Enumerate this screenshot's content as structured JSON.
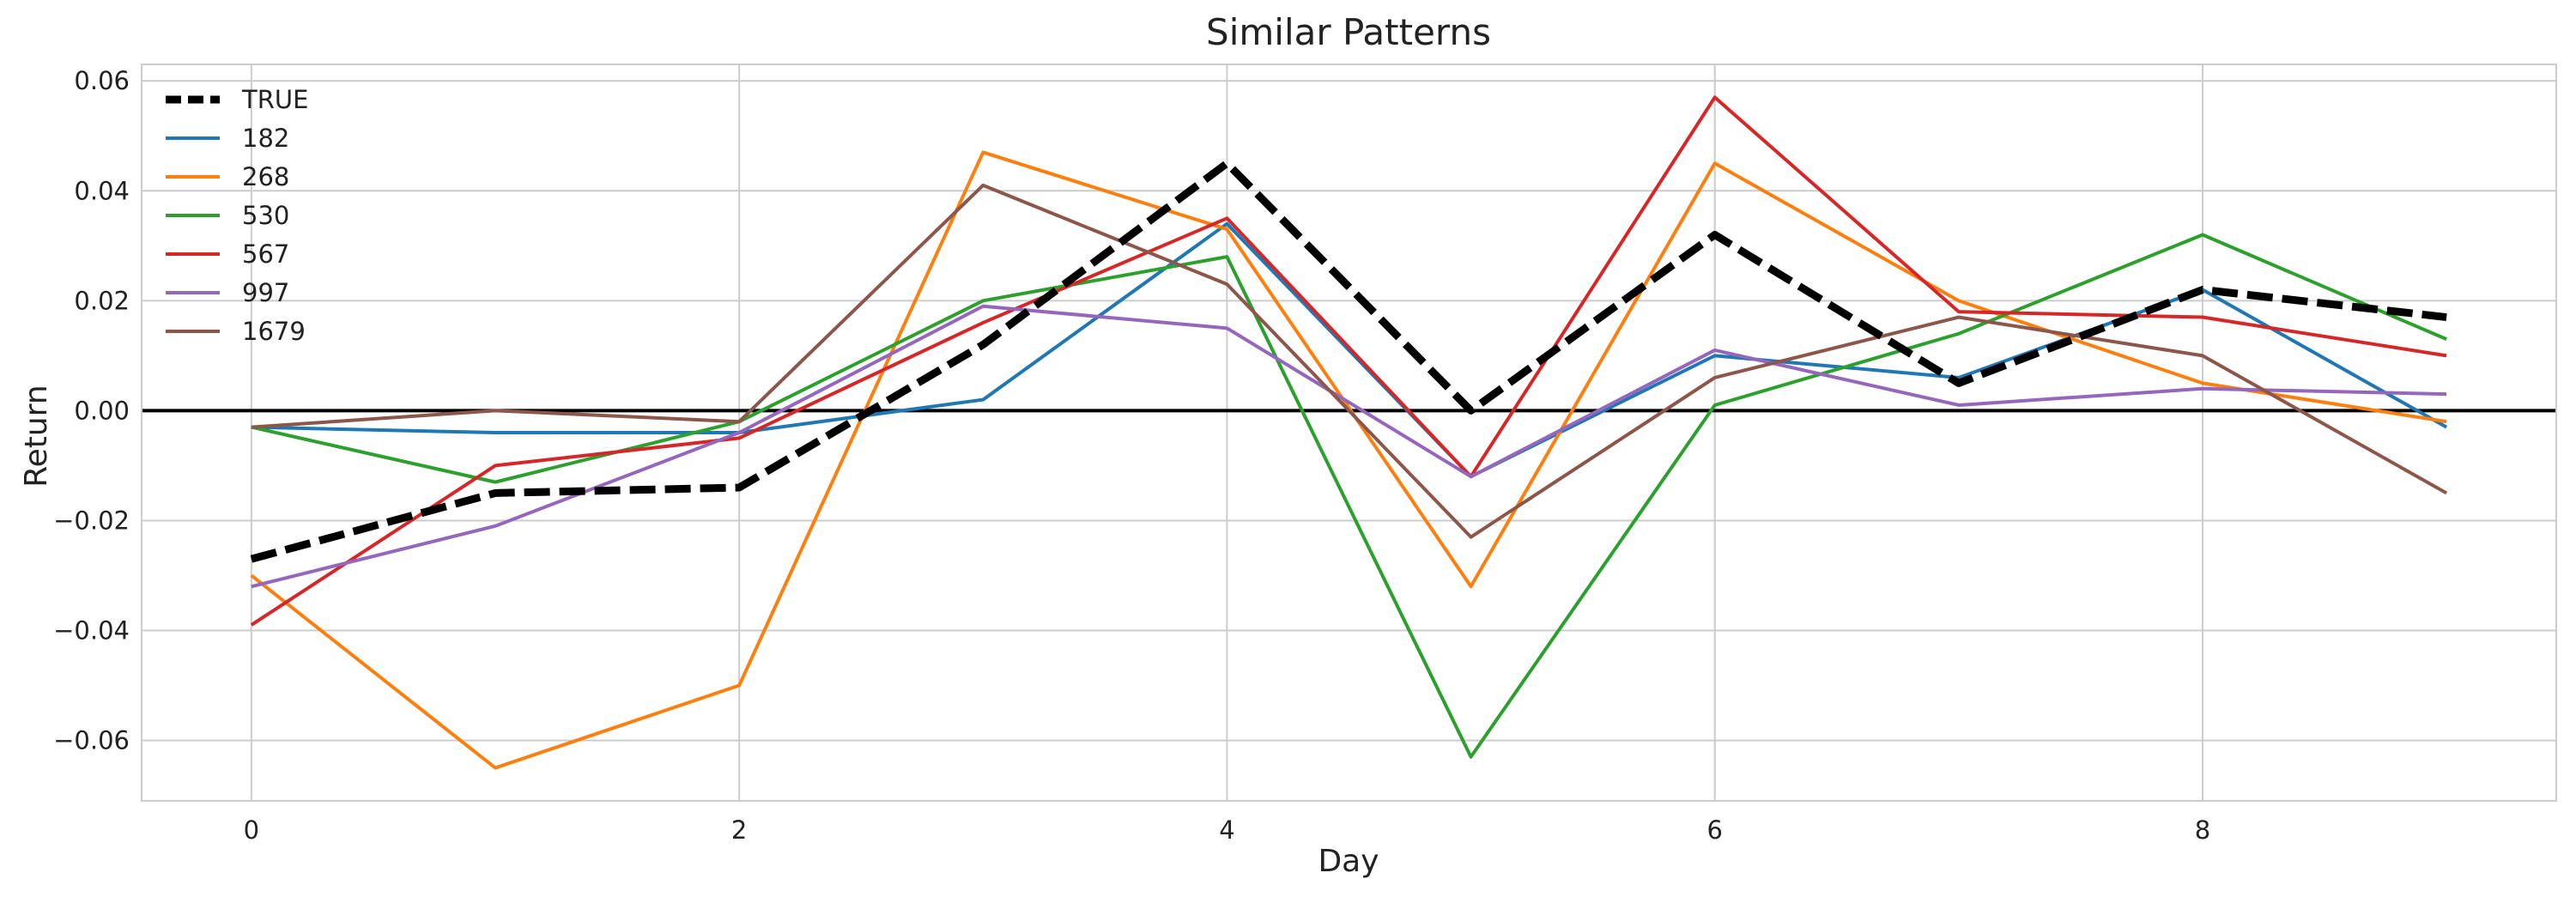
{
  "chart_data": {
    "type": "line",
    "title": "Similar Patterns",
    "xlabel": "Day",
    "ylabel": "Return",
    "x": [
      0,
      1,
      2,
      3,
      4,
      5,
      6,
      7,
      8,
      9
    ],
    "xlim": [
      -0.45,
      9.45
    ],
    "ylim": [
      -0.071,
      0.063
    ],
    "xticks": [
      0,
      2,
      4,
      6,
      8
    ],
    "xtick_labels": [
      "0",
      "2",
      "4",
      "6",
      "8"
    ],
    "yticks": [
      -0.06,
      -0.04,
      -0.02,
      0.0,
      0.02,
      0.04,
      0.06
    ],
    "ytick_labels": [
      "−0.06",
      "−0.04",
      "−0.02",
      "0.00",
      "0.02",
      "0.04",
      "0.06"
    ],
    "grid": true,
    "zero_line": true,
    "legend_position": "top-left",
    "series": [
      {
        "name": "TRUE",
        "color": "#000000",
        "dashed": true,
        "values": [
          -0.027,
          -0.015,
          -0.014,
          0.012,
          0.045,
          0.0,
          0.032,
          0.005,
          0.022,
          0.017
        ]
      },
      {
        "name": "182",
        "color": "#1f77b4",
        "dashed": false,
        "values": [
          -0.003,
          -0.004,
          -0.004,
          0.002,
          0.034,
          -0.012,
          0.01,
          0.006,
          0.022,
          -0.003
        ]
      },
      {
        "name": "268",
        "color": "#ff7f0e",
        "dashed": false,
        "values": [
          -0.03,
          -0.065,
          -0.05,
          0.047,
          0.033,
          -0.032,
          0.045,
          0.02,
          0.005,
          -0.002
        ]
      },
      {
        "name": "530",
        "color": "#2ca02c",
        "dashed": false,
        "values": [
          -0.003,
          -0.013,
          -0.002,
          0.02,
          0.028,
          -0.063,
          0.001,
          0.014,
          0.032,
          0.013
        ]
      },
      {
        "name": "567",
        "color": "#d62728",
        "dashed": false,
        "values": [
          -0.039,
          -0.01,
          -0.005,
          0.016,
          0.035,
          -0.012,
          0.057,
          0.018,
          0.017,
          0.01
        ]
      },
      {
        "name": "997",
        "color": "#9467bd",
        "dashed": false,
        "values": [
          -0.032,
          -0.021,
          -0.004,
          0.019,
          0.015,
          -0.012,
          0.011,
          0.001,
          0.004,
          0.003
        ]
      },
      {
        "name": "1679",
        "color": "#8c564b",
        "dashed": false,
        "values": [
          -0.003,
          0.0,
          -0.002,
          0.041,
          0.023,
          -0.023,
          0.006,
          0.017,
          0.01,
          -0.015
        ]
      }
    ]
  }
}
